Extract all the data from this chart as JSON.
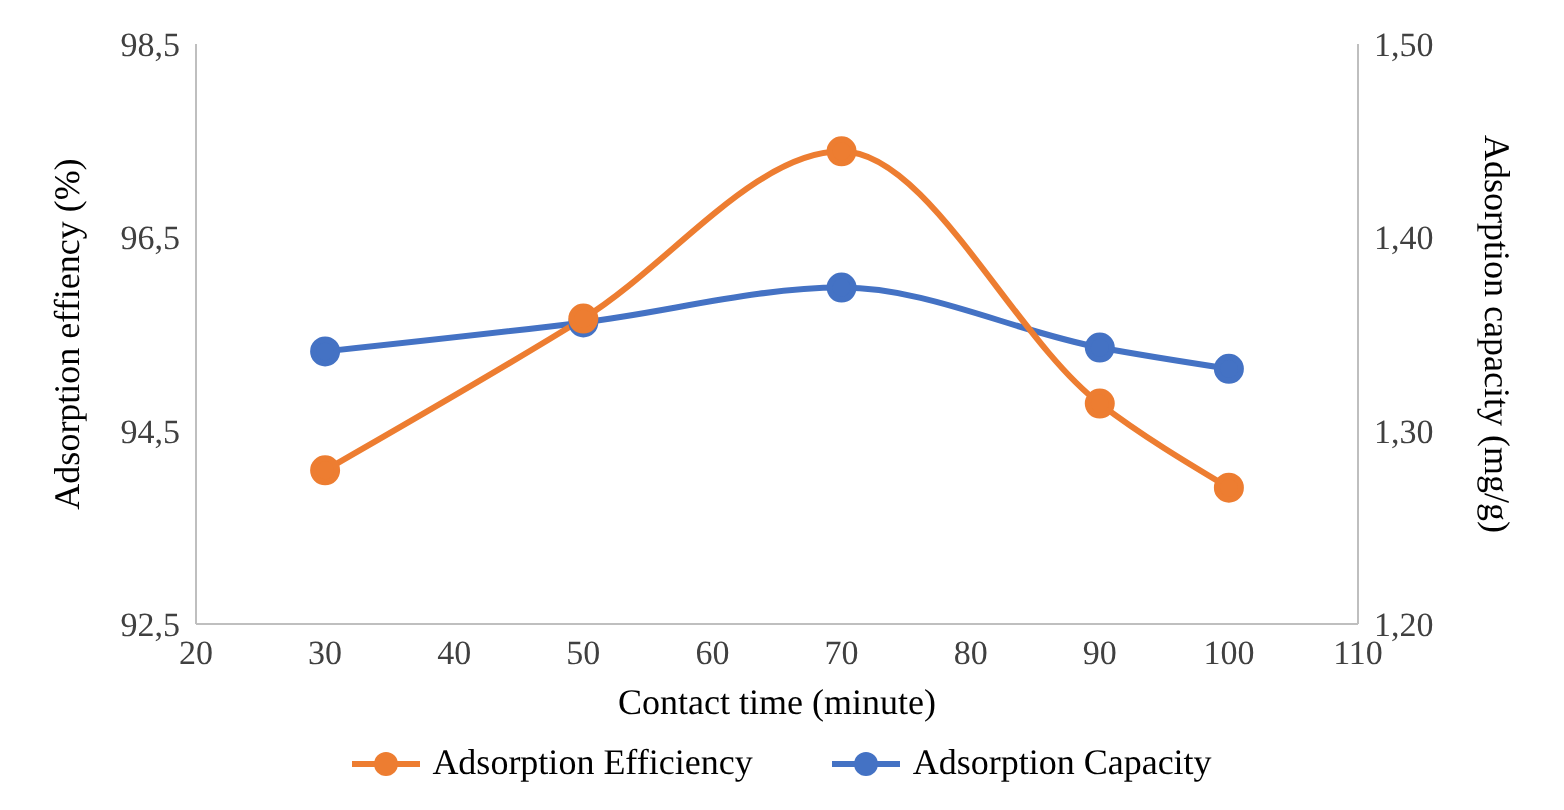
{
  "chart_data": {
    "type": "line",
    "xlabel": "Contact time (minute)",
    "ylabel": "Adsorption effiency (%)",
    "y2label": "Adsorption capacity (mg/g)",
    "x": [
      30,
      50,
      70,
      90,
      100
    ],
    "series": [
      {
        "name": "Adsorption Efficiency",
        "color": "#ed7d31",
        "values": [
          94.09,
          95.66,
          97.39,
          94.78,
          93.91
        ]
      },
      {
        "name": "Adsorption Capacity",
        "color": "#4472c4",
        "values": [
          1.341,
          1.356,
          1.374,
          1.343,
          1.332
        ],
        "axis": "y2"
      }
    ],
    "xlim": [
      20,
      110
    ],
    "xticks": [
      20,
      30,
      40,
      50,
      60,
      70,
      80,
      90,
      100,
      110
    ],
    "ylim": [
      92.5,
      98.5
    ],
    "yticks": [
      {
        "value": 92.5,
        "label": "92,5"
      },
      {
        "value": 94.5,
        "label": "94,5"
      },
      {
        "value": 96.5,
        "label": "96,5"
      },
      {
        "value": 98.5,
        "label": "98,5"
      }
    ],
    "y2lim": [
      1.2,
      1.5
    ],
    "y2ticks": [
      {
        "value": 1.2,
        "label": "1,20"
      },
      {
        "value": 1.3,
        "label": "1,30"
      },
      {
        "value": 1.4,
        "label": "1,40"
      },
      {
        "value": 1.5,
        "label": "1,50"
      }
    ],
    "grid": false,
    "legend": "bottom",
    "marker": "circle",
    "line_style": "solid"
  }
}
